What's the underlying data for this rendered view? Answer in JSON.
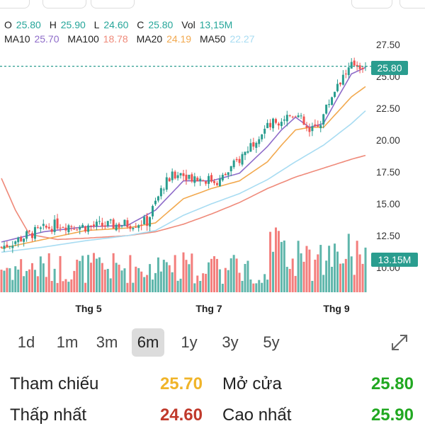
{
  "ohlc": {
    "o_label": "O",
    "o_value": "25.80",
    "h_label": "H",
    "h_value": "25.90",
    "l_label": "L",
    "l_value": "24.60",
    "c_label": "C",
    "c_value": "25.80",
    "vol_label": "Vol",
    "vol_value": "13,15M"
  },
  "ma": {
    "ma10_label": "MA10",
    "ma10_value": "25.70",
    "ma100_label": "MA100",
    "ma100_value": "18.78",
    "ma20_label": "MA20",
    "ma20_value": "24.19",
    "ma50_label": "MA50",
    "ma50_value": "22.27"
  },
  "colors": {
    "up": "#2a9d8f",
    "down": "#ef5350",
    "ma10": "#8e6cc9",
    "ma20": "#f2a94f",
    "ma50": "#a8dcf2",
    "ma100": "#ef8a7a",
    "price_green": "#26a69a",
    "ref_yellow": "#f0b429",
    "low_red": "#c0392b",
    "high_green": "#21a821"
  },
  "price_badge": "25.80",
  "volume_badge": "13.15M",
  "timeframes": [
    "1d",
    "1m",
    "3m",
    "6m",
    "1y",
    "3y",
    "5y"
  ],
  "active_timeframe": "6m",
  "stats": {
    "ref_label": "Tham chiếu",
    "ref_value": "25.70",
    "open_label": "Mở cửa",
    "open_value": "25.80",
    "low_label": "Thấp nhất",
    "low_value": "24.60",
    "high_label": "Cao nhất",
    "high_value": "25.90"
  },
  "chart_data": {
    "type": "candlestick",
    "y_ticks": [
      "10.00",
      "12.50",
      "15.00",
      "17.50",
      "20.00",
      "22.50",
      "25.00",
      "27.50"
    ],
    "ylim": [
      9.0,
      28.0
    ],
    "x_ticks": [
      "Thg 5",
      "Thg 7",
      "Thg 9"
    ],
    "last_close": 25.8,
    "ma_series": {
      "MA10": [
        [
          0,
          12.0
        ],
        [
          15,
          12.8
        ],
        [
          30,
          13.2
        ],
        [
          45,
          13.3
        ],
        [
          55,
          14.5
        ],
        [
          65,
          16.8
        ],
        [
          75,
          16.8
        ],
        [
          85,
          17.4
        ],
        [
          95,
          19.5
        ],
        [
          100,
          20.8
        ],
        [
          105,
          21.8
        ],
        [
          110,
          21.0
        ],
        [
          115,
          21.3
        ],
        [
          120,
          23.3
        ],
        [
          125,
          25.2
        ],
        [
          130,
          25.7
        ]
      ],
      "MA20": [
        [
          0,
          11.5
        ],
        [
          15,
          12.2
        ],
        [
          30,
          12.9
        ],
        [
          45,
          13.1
        ],
        [
          55,
          13.5
        ],
        [
          65,
          15.4
        ],
        [
          75,
          16.2
        ],
        [
          85,
          16.8
        ],
        [
          95,
          18.3
        ],
        [
          100,
          19.6
        ],
        [
          105,
          20.8
        ],
        [
          110,
          21.0
        ],
        [
          115,
          21.0
        ],
        [
          120,
          22.2
        ],
        [
          125,
          23.4
        ],
        [
          130,
          24.2
        ]
      ],
      "MA50": [
        [
          0,
          11.2
        ],
        [
          15,
          11.6
        ],
        [
          30,
          12.1
        ],
        [
          45,
          12.5
        ],
        [
          55,
          12.9
        ],
        [
          65,
          14.1
        ],
        [
          75,
          15.0
        ],
        [
          85,
          15.8
        ],
        [
          95,
          16.9
        ],
        [
          105,
          18.3
        ],
        [
          115,
          19.6
        ],
        [
          125,
          21.3
        ],
        [
          130,
          22.3
        ]
      ],
      "MA100": [
        [
          0,
          17.0
        ],
        [
          5,
          14.5
        ],
        [
          10,
          12.6
        ],
        [
          20,
          12.2
        ],
        [
          30,
          12.3
        ],
        [
          45,
          12.5
        ],
        [
          55,
          12.8
        ],
        [
          65,
          13.4
        ],
        [
          75,
          14.2
        ],
        [
          85,
          15.1
        ],
        [
          95,
          16.2
        ],
        [
          105,
          17.1
        ],
        [
          115,
          17.8
        ],
        [
          125,
          18.5
        ],
        [
          130,
          18.8
        ]
      ]
    }
  }
}
